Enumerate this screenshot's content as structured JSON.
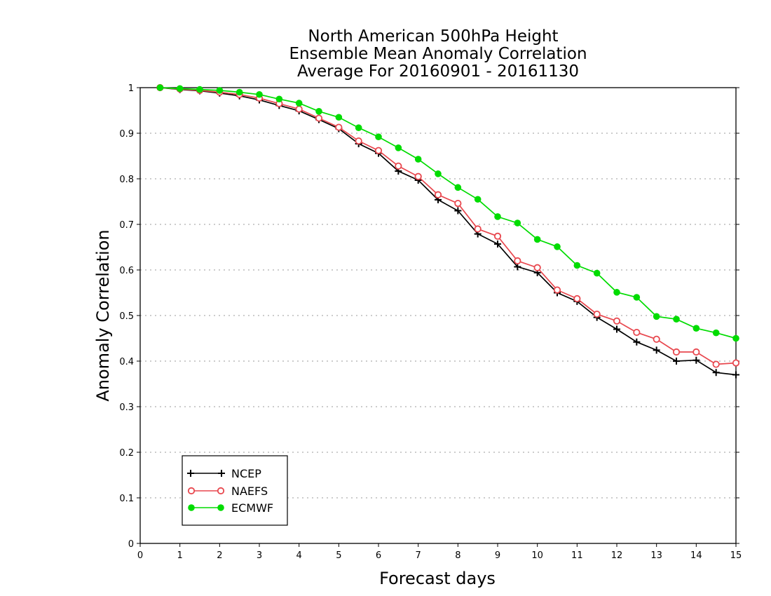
{
  "chart_data": {
    "type": "line",
    "title": [
      "North American 500hPa Height",
      "Ensemble Mean Anomaly Correlation",
      "Average For 20160901 - 20161130"
    ],
    "xlabel": "Forecast days",
    "ylabel": "Anomaly Correlation",
    "xlim": [
      0,
      15
    ],
    "ylim": [
      0,
      1
    ],
    "xticks": [
      "0",
      "1",
      "2",
      "3",
      "4",
      "5",
      "6",
      "7",
      "8",
      "9",
      "10",
      "11",
      "12",
      "13",
      "14",
      "15"
    ],
    "yticks": [
      "0",
      "0.1",
      "0.2",
      "0.3",
      "0.4",
      "0.5",
      "0.6",
      "0.7",
      "0.8",
      "0.9",
      "1"
    ],
    "grid": "horizontal dotted",
    "legend_position": "bottom-left",
    "x": [
      0.5,
      1,
      1.5,
      2,
      2.5,
      3,
      3.5,
      4,
      4.5,
      5,
      5.5,
      6,
      6.5,
      7,
      7.5,
      8,
      8.5,
      9,
      9.5,
      10,
      10.5,
      11,
      11.5,
      12,
      12.5,
      13,
      13.5,
      14,
      14.5,
      15
    ],
    "series": [
      {
        "name": "NCEP",
        "color": "#000000",
        "marker": "plus",
        "values": [
          1.0,
          0.996,
          0.993,
          0.988,
          0.982,
          0.973,
          0.961,
          0.949,
          0.93,
          0.91,
          0.877,
          0.856,
          0.817,
          0.797,
          0.754,
          0.73,
          0.679,
          0.657,
          0.607,
          0.594,
          0.55,
          0.531,
          0.496,
          0.47,
          0.442,
          0.424,
          0.4,
          0.402,
          0.375,
          0.37
        ]
      },
      {
        "name": "NAEFS",
        "color": "#e8474e",
        "marker": "open-circle",
        "values": [
          1.0,
          0.997,
          0.994,
          0.99,
          0.985,
          0.977,
          0.965,
          0.953,
          0.933,
          0.913,
          0.883,
          0.862,
          0.828,
          0.805,
          0.765,
          0.746,
          0.69,
          0.674,
          0.62,
          0.605,
          0.556,
          0.537,
          0.503,
          0.488,
          0.463,
          0.448,
          0.42,
          0.42,
          0.393,
          0.396
        ]
      },
      {
        "name": "ECMWF",
        "color": "#00dc00",
        "marker": "filled-circle",
        "values": [
          1.0,
          0.998,
          0.996,
          0.994,
          0.99,
          0.985,
          0.975,
          0.966,
          0.948,
          0.935,
          0.912,
          0.892,
          0.868,
          0.843,
          0.811,
          0.781,
          0.755,
          0.717,
          0.703,
          0.667,
          0.651,
          0.61,
          0.593,
          0.551,
          0.54,
          0.498,
          0.492,
          0.472,
          0.462,
          0.45
        ]
      }
    ]
  }
}
